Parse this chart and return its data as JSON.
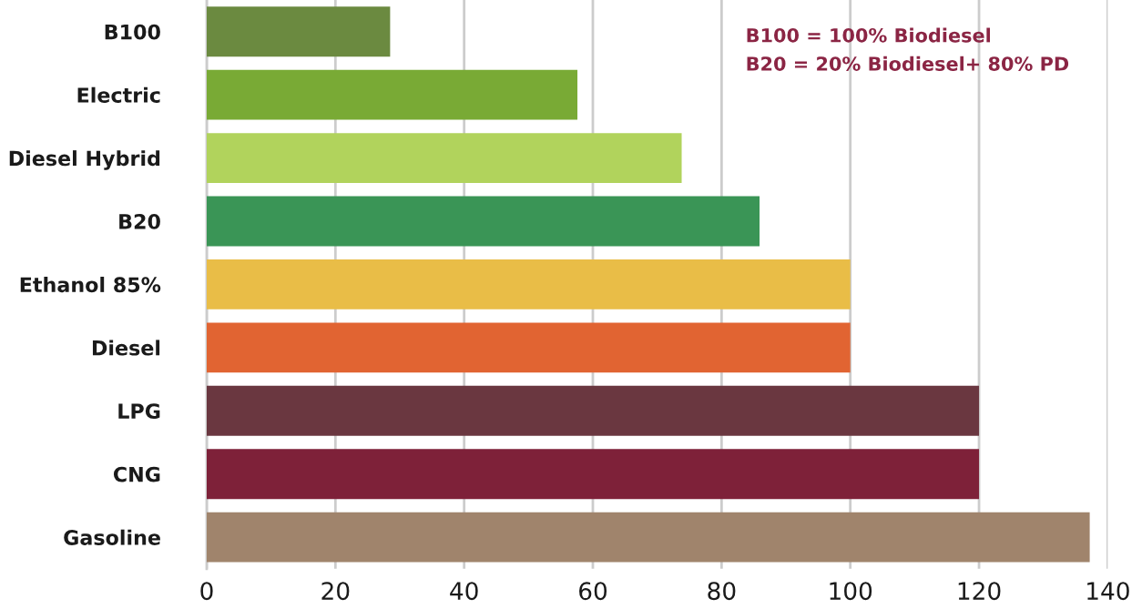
{
  "chart_data": {
    "type": "bar",
    "orientation": "horizontal",
    "categories": [
      "B100",
      "Electric",
      "Diesel Hybrid",
      "B20",
      "Ethanol 85%",
      "Diesel",
      "LPG",
      "CNG",
      "Gasoline"
    ],
    "values": [
      28.5,
      57.6,
      73.8,
      85.9,
      100,
      100,
      120,
      120,
      137.2
    ],
    "colors": [
      "#6b8a40",
      "#79aa35",
      "#b1d35c",
      "#3a9556",
      "#e9bd47",
      "#e16432",
      "#6a3740",
      "#7e2139",
      "#a0846c"
    ],
    "xlim": [
      0,
      140
    ],
    "xticks": [
      0,
      20,
      40,
      60,
      80,
      100,
      120,
      140
    ],
    "grid": "x",
    "legend": false,
    "annotations": [
      "B100 = 100% Biodiesel",
      "B20 = 20% Biodiesel+ 80% PD"
    ]
  }
}
